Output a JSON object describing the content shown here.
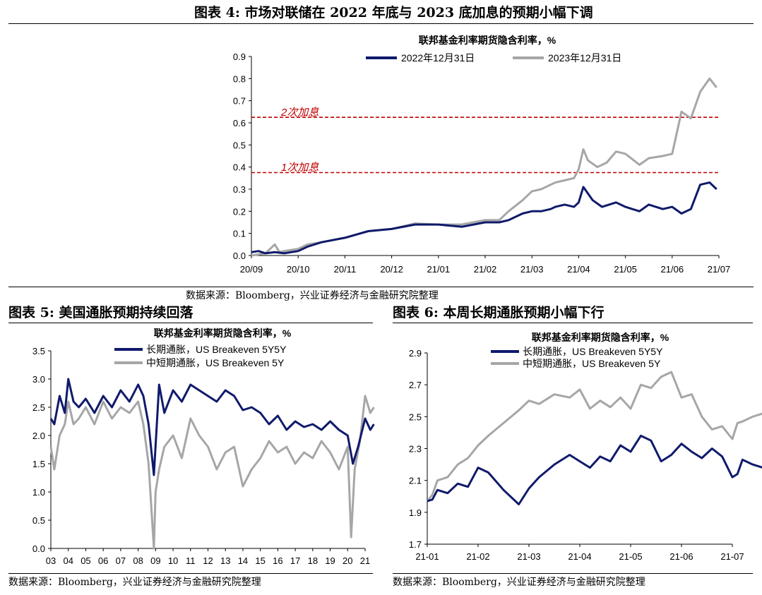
{
  "fig4": {
    "title": "图表 4:  市场对联储在 2022 年底与 2023 底加息的预期小幅下调",
    "source": "数据来源：Bloomberg，兴业证券经济与金融研究院整理"
  },
  "fig5": {
    "title": "图表 5:  美国通胀预期持续回落",
    "source": "数据来源：Bloomberg，兴业证券经济与金融研究院整理"
  },
  "fig6": {
    "title": "图表 6:  本周长期通胀预期小幅下行",
    "source": "数据来源：Bloomberg，兴业证券经济与金融研究院整理"
  },
  "colors": {
    "navy": "#0f1a6b",
    "gray": "#a6a6a6",
    "red": "#c00000"
  },
  "chart_data": [
    {
      "type": "line",
      "title": "联邦基金利率期货隐含利率，%",
      "ylim": [
        0,
        0.9
      ],
      "yticks": [
        "0.0",
        "0.1",
        "0.2",
        "0.3",
        "0.4",
        "0.5",
        "0.6",
        "0.7",
        "0.8",
        "0.9"
      ],
      "xticks": [
        "20/09",
        "20/10",
        "20/11",
        "20/12",
        "21/01",
        "21/02",
        "21/03",
        "21/04",
        "21/05",
        "21/06",
        "21/07"
      ],
      "legend_position": "top",
      "series": [
        {
          "name": "2022年12月31日",
          "color": "#0f1a6b",
          "x": [
            0,
            0.15,
            0.3,
            0.5,
            0.7,
            1.0,
            1.2,
            1.5,
            2.0,
            2.5,
            3.0,
            3.5,
            4.0,
            4.5,
            5.0,
            5.3,
            5.5,
            5.8,
            6.0,
            6.2,
            6.4,
            6.5,
            6.7,
            6.9,
            7.0,
            7.1,
            7.3,
            7.5,
            7.8,
            8.0,
            8.3,
            8.5,
            8.8,
            9.0,
            9.2,
            9.4,
            9.6,
            9.8,
            9.95
          ],
          "y": [
            0.015,
            0.02,
            0.01,
            0.015,
            0.01,
            0.02,
            0.04,
            0.06,
            0.08,
            0.11,
            0.12,
            0.14,
            0.14,
            0.13,
            0.15,
            0.15,
            0.16,
            0.19,
            0.2,
            0.2,
            0.21,
            0.22,
            0.23,
            0.22,
            0.24,
            0.31,
            0.25,
            0.22,
            0.24,
            0.22,
            0.2,
            0.23,
            0.21,
            0.22,
            0.19,
            0.21,
            0.32,
            0.33,
            0.3
          ]
        },
        {
          "name": "2023年12月31日",
          "color": "#a6a6a6",
          "x": [
            0,
            0.3,
            0.5,
            0.6,
            0.7,
            1.0,
            1.2,
            1.5,
            2.0,
            2.5,
            3.0,
            3.5,
            4.0,
            4.5,
            5.0,
            5.3,
            5.5,
            5.8,
            6.0,
            6.2,
            6.4,
            6.5,
            6.7,
            6.9,
            7.0,
            7.1,
            7.2,
            7.4,
            7.6,
            7.8,
            8.0,
            8.3,
            8.5,
            8.8,
            9.0,
            9.2,
            9.4,
            9.6,
            9.8,
            9.95
          ],
          "y": [
            0.0,
            0.01,
            0.05,
            0.015,
            0.02,
            0.03,
            0.05,
            0.06,
            0.08,
            0.11,
            0.12,
            0.145,
            0.14,
            0.14,
            0.16,
            0.16,
            0.2,
            0.25,
            0.29,
            0.3,
            0.32,
            0.33,
            0.34,
            0.35,
            0.39,
            0.48,
            0.43,
            0.4,
            0.42,
            0.47,
            0.46,
            0.41,
            0.44,
            0.45,
            0.46,
            0.65,
            0.62,
            0.74,
            0.8,
            0.76
          ]
        }
      ],
      "reference_lines": [
        {
          "label": "1次加息",
          "value": 0.375
        },
        {
          "label": "2次加息",
          "value": 0.625
        }
      ]
    },
    {
      "type": "line",
      "title": "联邦基金利率期货隐含利率，%",
      "ylim": [
        0,
        3.5
      ],
      "yticks": [
        "0.0",
        "0.5",
        "1.0",
        "1.5",
        "2.0",
        "2.5",
        "3.0",
        "3.5"
      ],
      "xticks": [
        "03",
        "04",
        "05",
        "06",
        "07",
        "08",
        "09",
        "10",
        "11",
        "12",
        "13",
        "14",
        "15",
        "16",
        "17",
        "18",
        "19",
        "20",
        "21"
      ],
      "legend_position": "top",
      "series": [
        {
          "name": "长期通胀，US Breakeven 5Y5Y",
          "color": "#0f1a6b",
          "x": [
            0,
            0.2,
            0.5,
            0.8,
            1.0,
            1.3,
            1.6,
            2.0,
            2.5,
            3.0,
            3.5,
            4.0,
            4.5,
            5.0,
            5.3,
            5.6,
            5.9,
            6.2,
            6.5,
            7.0,
            7.5,
            8.0,
            8.5,
            9.0,
            9.5,
            10.0,
            10.5,
            11.0,
            11.5,
            12.0,
            12.5,
            13.0,
            13.5,
            14.0,
            14.5,
            15.0,
            15.5,
            16.0,
            16.5,
            17.0,
            17.3,
            17.6,
            18.0,
            18.3,
            18.5
          ],
          "y": [
            2.3,
            2.2,
            2.7,
            2.4,
            3.0,
            2.6,
            2.5,
            2.65,
            2.4,
            2.7,
            2.5,
            2.8,
            2.6,
            2.9,
            2.7,
            2.2,
            1.3,
            2.9,
            2.4,
            2.8,
            2.6,
            2.9,
            2.8,
            2.7,
            2.6,
            2.8,
            2.7,
            2.45,
            2.5,
            2.4,
            2.2,
            2.35,
            2.1,
            2.25,
            2.15,
            2.2,
            2.1,
            2.25,
            2.1,
            2.0,
            1.5,
            1.8,
            2.3,
            2.1,
            2.2
          ]
        },
        {
          "name": "中短期通胀，US Breakeven 5Y",
          "color": "#a6a6a6",
          "x": [
            0,
            0.2,
            0.5,
            0.8,
            1.0,
            1.3,
            1.6,
            2.0,
            2.5,
            3.0,
            3.5,
            4.0,
            4.5,
            5.0,
            5.3,
            5.6,
            5.9,
            6.0,
            6.2,
            6.5,
            7.0,
            7.5,
            8.0,
            8.5,
            9.0,
            9.5,
            10.0,
            10.5,
            11.0,
            11.5,
            12.0,
            12.5,
            13.0,
            13.5,
            14.0,
            14.5,
            15.0,
            15.5,
            16.0,
            16.5,
            17.0,
            17.2,
            17.4,
            17.7,
            18.0,
            18.3,
            18.5
          ],
          "y": [
            1.8,
            1.4,
            2.0,
            2.2,
            2.6,
            2.2,
            2.3,
            2.5,
            2.2,
            2.6,
            2.3,
            2.5,
            2.4,
            2.6,
            2.2,
            1.5,
            0.0,
            1.0,
            1.4,
            1.8,
            2.0,
            1.6,
            2.3,
            2.0,
            1.8,
            1.4,
            1.7,
            1.8,
            1.1,
            1.4,
            1.6,
            1.9,
            1.7,
            1.8,
            1.5,
            1.7,
            1.6,
            1.9,
            1.7,
            1.4,
            1.8,
            0.2,
            1.4,
            1.9,
            2.7,
            2.4,
            2.5
          ]
        }
      ]
    },
    {
      "type": "line",
      "title": "联邦基金利率期货隐含利率，%",
      "ylim": [
        1.7,
        2.9
      ],
      "yticks": [
        "1.7",
        "1.9",
        "2.1",
        "2.3",
        "2.5",
        "2.7",
        "2.9"
      ],
      "xticks": [
        "21-01",
        "21-02",
        "21-03",
        "21-04",
        "21-05",
        "21-06",
        "21-07"
      ],
      "legend_position": "top",
      "series": [
        {
          "name": "长期通胀，US Breakeven 5Y5Y",
          "color": "#0f1a6b",
          "x": [
            0,
            0.1,
            0.2,
            0.4,
            0.6,
            0.8,
            1.0,
            1.2,
            1.5,
            1.8,
            2.0,
            2.2,
            2.5,
            2.8,
            3.0,
            3.2,
            3.4,
            3.6,
            3.8,
            4.0,
            4.2,
            4.4,
            4.6,
            4.8,
            5.0,
            5.2,
            5.4,
            5.6,
            5.8,
            6.0,
            6.1,
            6.2,
            6.4,
            6.6
          ],
          "y": [
            1.97,
            1.98,
            2.04,
            2.02,
            2.08,
            2.06,
            2.18,
            2.15,
            2.04,
            1.95,
            2.05,
            2.12,
            2.2,
            2.26,
            2.22,
            2.18,
            2.25,
            2.22,
            2.32,
            2.28,
            2.38,
            2.35,
            2.22,
            2.26,
            2.33,
            2.28,
            2.24,
            2.3,
            2.25,
            2.12,
            2.14,
            2.23,
            2.2,
            2.18
          ]
        },
        {
          "name": "中短期通胀，US Breakeven 5Y",
          "color": "#a6a6a6",
          "x": [
            0,
            0.1,
            0.2,
            0.4,
            0.6,
            0.8,
            1.0,
            1.2,
            1.5,
            1.8,
            2.0,
            2.2,
            2.5,
            2.8,
            3.0,
            3.2,
            3.4,
            3.6,
            3.8,
            4.0,
            4.2,
            4.4,
            4.6,
            4.8,
            5.0,
            5.2,
            5.4,
            5.6,
            5.8,
            6.0,
            6.1,
            6.2,
            6.4,
            6.6
          ],
          "y": [
            1.97,
            2.01,
            2.1,
            2.12,
            2.2,
            2.24,
            2.32,
            2.38,
            2.46,
            2.54,
            2.6,
            2.58,
            2.64,
            2.62,
            2.67,
            2.55,
            2.6,
            2.56,
            2.62,
            2.55,
            2.7,
            2.68,
            2.75,
            2.78,
            2.62,
            2.64,
            2.5,
            2.42,
            2.44,
            2.36,
            2.46,
            2.47,
            2.5,
            2.52
          ]
        }
      ]
    }
  ]
}
